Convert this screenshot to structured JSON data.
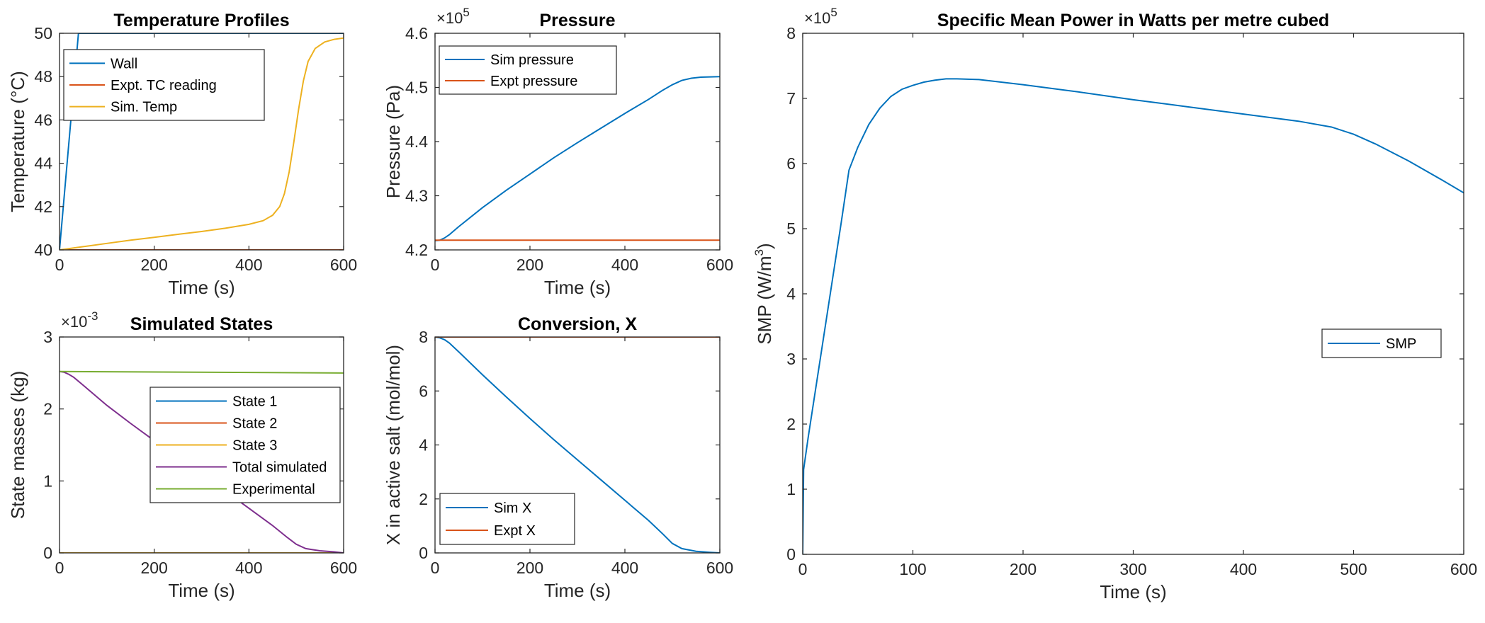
{
  "chart_data": [
    {
      "id": "temp",
      "type": "line",
      "title": "Temperature Profiles",
      "xlabel": "Time (s)",
      "ylabel": "Temperature (°C)",
      "xlim": [
        0,
        600
      ],
      "ylim": [
        40,
        50
      ],
      "xticks": [
        0,
        200,
        400,
        600
      ],
      "xtick_labels": [
        "0",
        "200",
        "400",
        "600"
      ],
      "yticks": [
        40,
        42,
        44,
        46,
        48,
        50
      ],
      "ytick_labels": [
        "40",
        "42",
        "44",
        "46",
        "48",
        "50"
      ],
      "legend_location": "top-left",
      "series": [
        {
          "name": "Wall",
          "color": "#0072BD",
          "points": [
            [
              0,
              40
            ],
            [
              40,
              50
            ],
            [
              600,
              50
            ]
          ]
        },
        {
          "name": "Expt. TC reading",
          "color": "#D95319",
          "points": [
            [
              0,
              40
            ],
            [
              600,
              40
            ]
          ]
        },
        {
          "name": "Sim. Temp",
          "color": "#EDB120",
          "points": [
            [
              0,
              40
            ],
            [
              50,
              40.15
            ],
            [
              100,
              40.3
            ],
            [
              150,
              40.45
            ],
            [
              200,
              40.58
            ],
            [
              250,
              40.72
            ],
            [
              300,
              40.85
            ],
            [
              350,
              41.0
            ],
            [
              400,
              41.18
            ],
            [
              430,
              41.35
            ],
            [
              450,
              41.6
            ],
            [
              465,
              42.0
            ],
            [
              475,
              42.6
            ],
            [
              485,
              43.6
            ],
            [
              495,
              45.0
            ],
            [
              505,
              46.5
            ],
            [
              515,
              47.8
            ],
            [
              525,
              48.7
            ],
            [
              540,
              49.3
            ],
            [
              560,
              49.6
            ],
            [
              580,
              49.72
            ],
            [
              600,
              49.78
            ]
          ]
        }
      ]
    },
    {
      "id": "pressure",
      "type": "line",
      "title": "Pressure",
      "xlabel": "Time (s)",
      "ylabel": "Pressure (Pa)",
      "exponent_base": "×10",
      "exponent_power": "5",
      "xlim": [
        0,
        600
      ],
      "ylim": [
        4.2,
        4.6
      ],
      "xticks": [
        0,
        200,
        400,
        600
      ],
      "xtick_labels": [
        "0",
        "200",
        "400",
        "600"
      ],
      "yticks": [
        4.2,
        4.3,
        4.4,
        4.5,
        4.6
      ],
      "ytick_labels": [
        "4.2",
        "4.3",
        "4.4",
        "4.5",
        "4.6"
      ],
      "legend_location": "top-left",
      "series": [
        {
          "name": "Sim pressure",
          "color": "#0072BD",
          "points": [
            [
              0,
              4.217
            ],
            [
              10,
              4.218
            ],
            [
              20,
              4.222
            ],
            [
              30,
              4.228
            ],
            [
              50,
              4.243
            ],
            [
              100,
              4.278
            ],
            [
              150,
              4.31
            ],
            [
              200,
              4.34
            ],
            [
              250,
              4.37
            ],
            [
              300,
              4.398
            ],
            [
              350,
              4.425
            ],
            [
              400,
              4.452
            ],
            [
              450,
              4.478
            ],
            [
              480,
              4.495
            ],
            [
              500,
              4.505
            ],
            [
              520,
              4.513
            ],
            [
              540,
              4.517
            ],
            [
              560,
              4.519
            ],
            [
              600,
              4.52
            ]
          ]
        },
        {
          "name": "Expt pressure",
          "color": "#D95319",
          "points": [
            [
              0,
              4.218
            ],
            [
              600,
              4.218
            ]
          ]
        }
      ]
    },
    {
      "id": "states",
      "type": "line",
      "title": "Simulated States",
      "xlabel": "Time (s)",
      "ylabel": "State masses (kg)",
      "exponent_base": "×10",
      "exponent_power": "-3",
      "xlim": [
        0,
        600
      ],
      "ylim": [
        0,
        3
      ],
      "xticks": [
        0,
        200,
        400,
        600
      ],
      "xtick_labels": [
        "0",
        "200",
        "400",
        "600"
      ],
      "yticks": [
        0,
        1,
        2,
        3
      ],
      "ytick_labels": [
        "0",
        "1",
        "2",
        "3"
      ],
      "legend_location": "center-right",
      "series": [
        {
          "name": "State 1",
          "color": "#0072BD",
          "points": [
            [
              0,
              0
            ],
            [
              600,
              0
            ]
          ]
        },
        {
          "name": "State 2",
          "color": "#D95319",
          "points": [
            [
              0,
              0
            ],
            [
              600,
              0
            ]
          ]
        },
        {
          "name": "State 3",
          "color": "#EDB120",
          "points": [
            [
              0,
              0
            ],
            [
              600,
              0
            ]
          ]
        },
        {
          "name": "Total simulated",
          "color": "#7E2F8E",
          "points": [
            [
              0,
              2.52
            ],
            [
              10,
              2.51
            ],
            [
              20,
              2.48
            ],
            [
              30,
              2.44
            ],
            [
              50,
              2.33
            ],
            [
              100,
              2.05
            ],
            [
              150,
              1.8
            ],
            [
              200,
              1.56
            ],
            [
              250,
              1.32
            ],
            [
              300,
              1.09
            ],
            [
              350,
              0.86
            ],
            [
              400,
              0.62
            ],
            [
              450,
              0.38
            ],
            [
              480,
              0.22
            ],
            [
              500,
              0.12
            ],
            [
              520,
              0.06
            ],
            [
              550,
              0.03
            ],
            [
              580,
              0.015
            ],
            [
              600,
              0.0
            ]
          ]
        },
        {
          "name": "Experimental",
          "color": "#77AC30",
          "points": [
            [
              0,
              2.52
            ],
            [
              600,
              2.5
            ]
          ]
        }
      ]
    },
    {
      "id": "conversion",
      "type": "line",
      "title": "Conversion, X",
      "xlabel": "Time (s)",
      "ylabel": "X in active salt (mol/mol)",
      "xlim": [
        0,
        600
      ],
      "ylim": [
        0,
        8
      ],
      "xticks": [
        0,
        200,
        400,
        600
      ],
      "xtick_labels": [
        "0",
        "200",
        "400",
        "600"
      ],
      "yticks": [
        0,
        2,
        4,
        6,
        8
      ],
      "ytick_labels": [
        "0",
        "2",
        "4",
        "6",
        "8"
      ],
      "legend_location": "bottom-left",
      "series": [
        {
          "name": "Sim X",
          "color": "#0072BD",
          "points": [
            [
              0,
              8.0
            ],
            [
              10,
              7.97
            ],
            [
              20,
              7.9
            ],
            [
              30,
              7.78
            ],
            [
              50,
              7.45
            ],
            [
              100,
              6.6
            ],
            [
              150,
              5.78
            ],
            [
              200,
              4.98
            ],
            [
              250,
              4.2
            ],
            [
              300,
              3.45
            ],
            [
              350,
              2.7
            ],
            [
              400,
              1.95
            ],
            [
              450,
              1.2
            ],
            [
              480,
              0.7
            ],
            [
              500,
              0.35
            ],
            [
              520,
              0.16
            ],
            [
              550,
              0.06
            ],
            [
              580,
              0.02
            ],
            [
              600,
              0.0
            ]
          ]
        },
        {
          "name": "Expt X",
          "color": "#D95319",
          "points": [
            [
              0,
              8.0
            ],
            [
              600,
              8.0
            ]
          ]
        }
      ]
    },
    {
      "id": "smp",
      "type": "line",
      "title": "Specific Mean Power in Watts per metre cubed",
      "xlabel": "Time (s)",
      "ylabel_main": "SMP (W/m",
      "ylabel_sup": "3",
      "ylabel_end": ")",
      "exponent_base": "×10",
      "exponent_power": "5",
      "xlim": [
        0,
        600
      ],
      "ylim": [
        0,
        8
      ],
      "xticks": [
        0,
        100,
        200,
        300,
        400,
        500,
        600
      ],
      "xtick_labels": [
        "0",
        "100",
        "200",
        "300",
        "400",
        "500",
        "600"
      ],
      "yticks": [
        0,
        1,
        2,
        3,
        4,
        5,
        6,
        7,
        8
      ],
      "ytick_labels": [
        "0",
        "1",
        "2",
        "3",
        "4",
        "5",
        "6",
        "7",
        "8"
      ],
      "legend_location": "center-right",
      "series": [
        {
          "name": "SMP",
          "color": "#0072BD",
          "points": [
            [
              0,
              0
            ],
            [
              0.8,
              1.3
            ],
            [
              5,
              1.8
            ],
            [
              15,
              2.9
            ],
            [
              25,
              4.0
            ],
            [
              35,
              5.1
            ],
            [
              42,
              5.9
            ],
            [
              50,
              6.25
            ],
            [
              60,
              6.6
            ],
            [
              70,
              6.85
            ],
            [
              80,
              7.03
            ],
            [
              90,
              7.14
            ],
            [
              100,
              7.2
            ],
            [
              110,
              7.25
            ],
            [
              120,
              7.28
            ],
            [
              130,
              7.3
            ],
            [
              140,
              7.3
            ],
            [
              160,
              7.29
            ],
            [
              200,
              7.21
            ],
            [
              250,
              7.1
            ],
            [
              300,
              6.98
            ],
            [
              350,
              6.87
            ],
            [
              400,
              6.76
            ],
            [
              450,
              6.65
            ],
            [
              480,
              6.56
            ],
            [
              500,
              6.45
            ],
            [
              520,
              6.3
            ],
            [
              550,
              6.04
            ],
            [
              580,
              5.75
            ],
            [
              600,
              5.55
            ]
          ]
        }
      ]
    }
  ]
}
